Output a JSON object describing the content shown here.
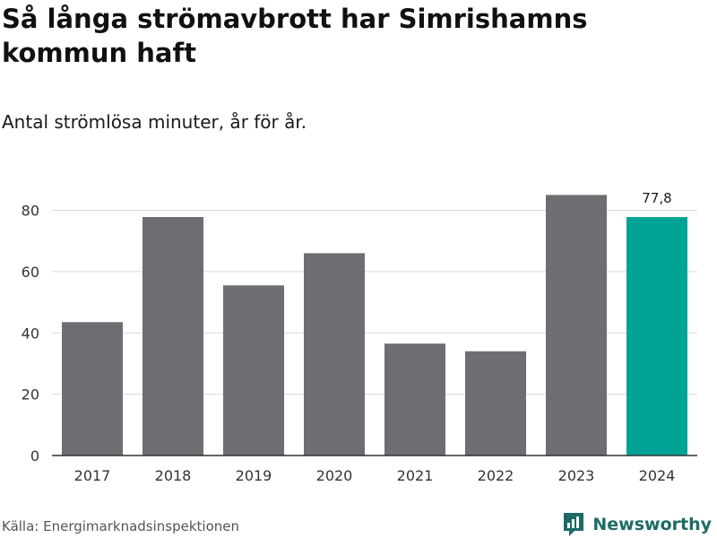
{
  "header": {
    "title": "Så långa strömavbrott har Simrishamns kommun haft",
    "subtitle": "Antal strömlösa minuter, år för år."
  },
  "footer": {
    "source": "Källa: Energimarknadsinspektionen",
    "brand": "Newsworthy"
  },
  "colors": {
    "bar": "#6e6d72",
    "highlight": "#00a396",
    "grid": "#d9d9d9",
    "axis": "#333333",
    "brand": "#1e6b66"
  },
  "chart_data": {
    "type": "bar",
    "title": "Så långa strömavbrott har Simrishamns kommun haft",
    "subtitle": "Antal strömlösa minuter, år för år.",
    "categories": [
      "2017",
      "2018",
      "2019",
      "2020",
      "2021",
      "2022",
      "2023",
      "2024"
    ],
    "values": [
      43.5,
      77.8,
      55.5,
      66.0,
      36.5,
      34.0,
      85.0,
      77.8
    ],
    "highlight_index": 7,
    "data_labels": [
      {
        "index": 7,
        "text": "77,8"
      }
    ],
    "ylim": [
      0,
      86
    ],
    "yticks": [
      0,
      20,
      40,
      60,
      80
    ],
    "xlabel": "",
    "ylabel": "",
    "grid": true,
    "legend": "none"
  }
}
